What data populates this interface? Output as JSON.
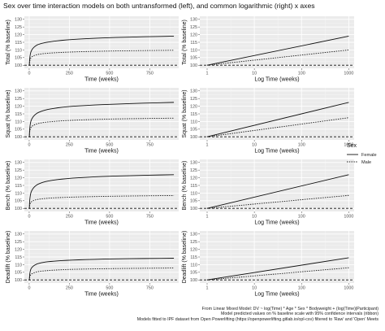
{
  "title": "Sex over time interaction models on both untransformed (left), and common logarithmic (right) x axes",
  "caption": [
    "From Linear Mixed Model: DV ~ log(Time) * Age * Sex * Bodyweight + (log(Time)|Participant)",
    "Model predicted values on % baseline scale with 95% confidence intervals (ribbon)",
    "Models fitted to IPF dataset from Open Powerlifting (https://openpowerlifting.gitlab.io/opl-csv) filtered to 'Raw' and 'Open' Meets"
  ],
  "legend": {
    "title": "Sex",
    "entries": [
      {
        "label": "Female",
        "linetype": "solid"
      },
      {
        "label": "Male",
        "linetype": "dotted"
      }
    ]
  },
  "colors": {
    "panel": "#ebebeb",
    "grid": "#ffffff",
    "line": "#111111",
    "reference": "#111111"
  },
  "chart_data": [
    {
      "type": "line",
      "ylabel": "Total (% baseline)",
      "xlabel": "Time (weeks)",
      "x_scale": "linear",
      "xlim": [
        -30,
        930
      ],
      "x_ticks": [
        0,
        250,
        500,
        750
      ],
      "ylim": [
        98,
        132
      ],
      "y_ticks": [
        100,
        105,
        110,
        115,
        120,
        125,
        130
      ],
      "reference_line": 100,
      "series": [
        {
          "name": "Female",
          "x": [
            0,
            1,
            10,
            50,
            100,
            250,
            500,
            900
          ],
          "y": [
            100,
            100,
            108.5,
            113.3,
            114.8,
            116.7,
            118,
            119
          ]
        },
        {
          "name": "Male",
          "x": [
            0,
            1,
            10,
            50,
            100,
            250,
            500,
            900
          ],
          "y": [
            100,
            100,
            104.8,
            107,
            107.7,
            108.6,
            109.3,
            109.8
          ]
        }
      ]
    },
    {
      "type": "line",
      "ylabel": "Total (% baseline)",
      "xlabel": "Log Time (weeks)",
      "x_scale": "log10",
      "xlim": [
        0.7,
        1300
      ],
      "x_ticks": [
        1,
        10,
        100,
        1000
      ],
      "ylim": [
        98,
        132
      ],
      "y_ticks": [
        100,
        105,
        110,
        115,
        120,
        125,
        130
      ],
      "reference_line": 100,
      "series": [
        {
          "name": "Female",
          "x": [
            1,
            1000
          ],
          "y": [
            100,
            119
          ]
        },
        {
          "name": "Male",
          "x": [
            1,
            1000
          ],
          "y": [
            100,
            110
          ]
        }
      ]
    },
    {
      "type": "line",
      "ylabel": "Squat (% baseline)",
      "xlabel": "Time (weeks)",
      "x_scale": "linear",
      "xlim": [
        -30,
        930
      ],
      "x_ticks": [
        0,
        250,
        500,
        750
      ],
      "ylim": [
        98,
        132
      ],
      "y_ticks": [
        100,
        105,
        110,
        115,
        120,
        125,
        130
      ],
      "reference_line": 100,
      "series": [
        {
          "name": "Female",
          "x": [
            0,
            1,
            10,
            50,
            100,
            250,
            500,
            900
          ],
          "y": [
            100,
            100,
            110,
            115.5,
            117.5,
            119.8,
            121.2,
            122.5
          ]
        },
        {
          "name": "Male",
          "x": [
            0,
            1,
            10,
            50,
            100,
            250,
            500,
            900
          ],
          "y": [
            100,
            100,
            106,
            108.5,
            109.5,
            110.7,
            111.6,
            112.2
          ]
        }
      ]
    },
    {
      "type": "line",
      "ylabel": "Squat (% baseline)",
      "xlabel": "Log Time (weeks)",
      "x_scale": "log10",
      "xlim": [
        0.7,
        1300
      ],
      "x_ticks": [
        1,
        10,
        100,
        1000
      ],
      "ylim": [
        98,
        132
      ],
      "y_ticks": [
        100,
        105,
        110,
        115,
        120,
        125,
        130
      ],
      "reference_line": 100,
      "series": [
        {
          "name": "Female",
          "x": [
            1,
            1000
          ],
          "y": [
            100,
            122.5
          ]
        },
        {
          "name": "Male",
          "x": [
            1,
            1000
          ],
          "y": [
            100,
            112.5
          ]
        }
      ]
    },
    {
      "type": "line",
      "ylabel": "Bench (% baseline)",
      "xlabel": "Time (weeks)",
      "x_scale": "linear",
      "xlim": [
        -30,
        930
      ],
      "x_ticks": [
        0,
        250,
        500,
        750
      ],
      "ylim": [
        98,
        132
      ],
      "y_ticks": [
        100,
        105,
        110,
        115,
        120,
        125,
        130
      ],
      "reference_line": 100,
      "series": [
        {
          "name": "Female",
          "x": [
            0,
            1,
            10,
            50,
            100,
            250,
            500,
            900
          ],
          "y": [
            100,
            100,
            110,
            115.5,
            117.5,
            119.6,
            121,
            122
          ]
        },
        {
          "name": "Male",
          "x": [
            0,
            1,
            10,
            50,
            100,
            250,
            500,
            900
          ],
          "y": [
            100,
            100,
            104,
            105.8,
            106.5,
            107.3,
            107.9,
            108.4
          ]
        }
      ]
    },
    {
      "type": "line",
      "ylabel": "Bench (% baseline)",
      "xlabel": "Log Time (weeks)",
      "x_scale": "log10",
      "xlim": [
        0.7,
        1300
      ],
      "x_ticks": [
        1,
        10,
        100,
        1000
      ],
      "ylim": [
        98,
        132
      ],
      "y_ticks": [
        100,
        105,
        110,
        115,
        120,
        125,
        130
      ],
      "reference_line": 100,
      "series": [
        {
          "name": "Female",
          "x": [
            1,
            1000
          ],
          "y": [
            100,
            122
          ]
        },
        {
          "name": "Male",
          "x": [
            1,
            1000
          ],
          "y": [
            100,
            108.5
          ]
        }
      ]
    },
    {
      "type": "line",
      "ylabel": "Deadlift (% baseline)",
      "xlabel": "Time (weeks)",
      "x_scale": "linear",
      "xlim": [
        -30,
        930
      ],
      "x_ticks": [
        0,
        250,
        500,
        750
      ],
      "ylim": [
        98,
        132
      ],
      "y_ticks": [
        100,
        105,
        110,
        115,
        120,
        125,
        130
      ],
      "reference_line": 100,
      "series": [
        {
          "name": "Female",
          "x": [
            0,
            1,
            10,
            50,
            100,
            250,
            500,
            900
          ],
          "y": [
            100,
            100,
            107,
            110.5,
            111.7,
            112.9,
            113.7,
            114.2
          ]
        },
        {
          "name": "Male",
          "x": [
            0,
            1,
            10,
            50,
            100,
            250,
            500,
            900
          ],
          "y": [
            100,
            100,
            103.5,
            105.3,
            106,
            106.9,
            107.4,
            107.8
          ]
        }
      ]
    },
    {
      "type": "line",
      "ylabel": "Deadlift (% baseline)",
      "xlabel": "Log Time (weeks)",
      "x_scale": "log10",
      "xlim": [
        0.7,
        1300
      ],
      "x_ticks": [
        1,
        10,
        100,
        1000
      ],
      "ylim": [
        98,
        132
      ],
      "y_ticks": [
        100,
        105,
        110,
        115,
        120,
        125,
        130
      ],
      "reference_line": 100,
      "series": [
        {
          "name": "Female",
          "x": [
            1,
            1000
          ],
          "y": [
            100,
            114.5
          ]
        },
        {
          "name": "Male",
          "x": [
            1,
            1000
          ],
          "y": [
            100,
            108
          ]
        }
      ]
    }
  ]
}
